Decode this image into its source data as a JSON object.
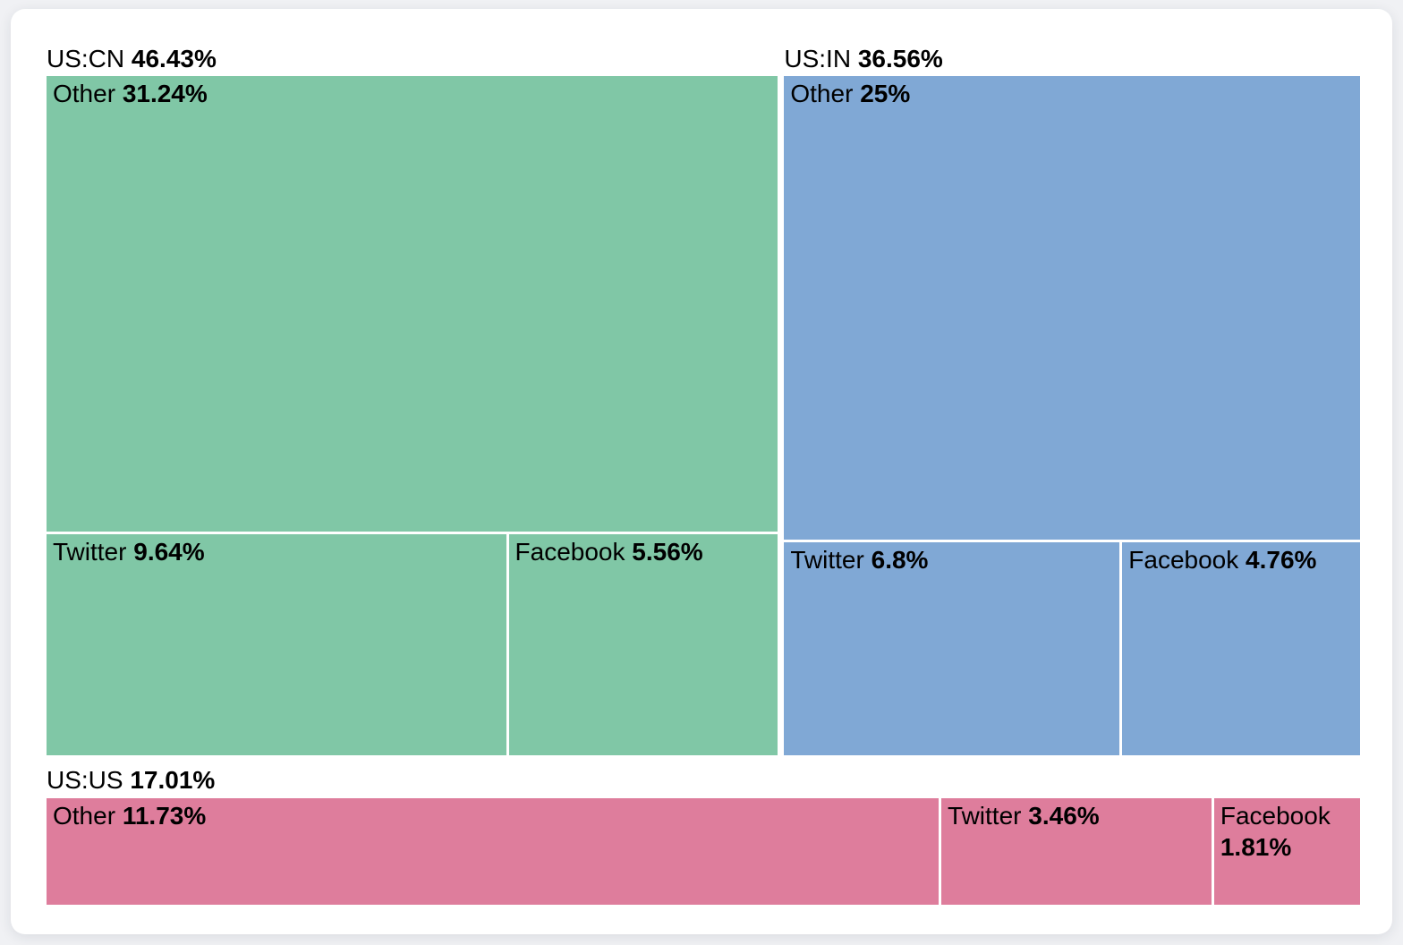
{
  "chart_data": {
    "type": "treemap",
    "title": "",
    "value_unit": "%",
    "label_format": "name + bold percentage",
    "legend": "none",
    "layout_hint": "US:CN and US:IN side by side on top row, US:US full-width bottom row; 'Other' tile on top of each group, Twitter/Facebook tiles below; sizes proportional to values",
    "groups": [
      {
        "label": "US:CN",
        "value": 46.43,
        "value_label": "46.43%",
        "color": "#80c7a6",
        "children": [
          {
            "label": "Other",
            "value": 31.24,
            "value_label": "31.24%"
          },
          {
            "label": "Twitter",
            "value": 9.64,
            "value_label": "9.64%"
          },
          {
            "label": "Facebook",
            "value": 5.56,
            "value_label": "5.56%"
          }
        ]
      },
      {
        "label": "US:IN",
        "value": 36.56,
        "value_label": "36.56%",
        "color": "#80a8d5",
        "children": [
          {
            "label": "Other",
            "value": 25,
            "value_label": "25%"
          },
          {
            "label": "Twitter",
            "value": 6.8,
            "value_label": "6.8%"
          },
          {
            "label": "Facebook",
            "value": 4.76,
            "value_label": "4.76%"
          }
        ]
      },
      {
        "label": "US:US",
        "value": 17.01,
        "value_label": "17.01%",
        "color": "#de7d9c",
        "children": [
          {
            "label": "Other",
            "value": 11.73,
            "value_label": "11.73%"
          },
          {
            "label": "Twitter",
            "value": 3.46,
            "value_label": "3.46%"
          },
          {
            "label": "Facebook",
            "value": 1.81,
            "value_label": "1.81%"
          }
        ]
      }
    ]
  }
}
